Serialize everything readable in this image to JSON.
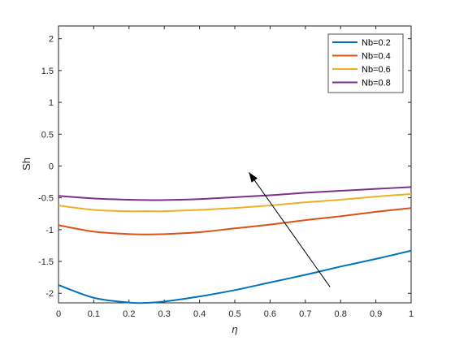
{
  "chart_data": {
    "type": "line",
    "xlabel": "η",
    "ylabel": "Sh",
    "xlim": [
      0,
      1
    ],
    "ylim": [
      -2.15,
      2.2
    ],
    "x_ticks": [
      0,
      0.1,
      0.2,
      0.3,
      0.4,
      0.5,
      0.6,
      0.7,
      0.8,
      0.9,
      1
    ],
    "x_tick_labels": [
      "0",
      "0.1",
      "0.2",
      "0.3",
      "0.4",
      "0.5",
      "0.6",
      "0.7",
      "0.8",
      "0.9",
      "1"
    ],
    "y_ticks": [
      -2,
      -1.5,
      -1,
      -0.5,
      0,
      0.5,
      1,
      1.5,
      2
    ],
    "y_tick_labels": [
      "-2",
      "-1.5",
      "-1",
      "-0.5",
      "0",
      "0.5",
      "1",
      "1.5",
      "2"
    ],
    "grid": false,
    "legend_position": "top-right",
    "x": [
      0,
      0.1,
      0.2,
      0.25,
      0.3,
      0.4,
      0.5,
      0.6,
      0.7,
      0.8,
      0.9,
      1
    ],
    "series": [
      {
        "name": "Nb=0.2",
        "color": "#0072BD",
        "values": [
          -1.87,
          -2.07,
          -2.145,
          -2.15,
          -2.13,
          -2.05,
          -1.95,
          -1.83,
          -1.71,
          -1.58,
          -1.46,
          -1.33
        ]
      },
      {
        "name": "Nb=0.4",
        "color": "#D95319",
        "values": [
          -0.93,
          -1.03,
          -1.07,
          -1.075,
          -1.07,
          -1.04,
          -0.98,
          -0.92,
          -0.85,
          -0.79,
          -0.72,
          -0.66
        ]
      },
      {
        "name": "Nb=0.6",
        "color": "#EDB120",
        "values": [
          -0.62,
          -0.69,
          -0.71,
          -0.71,
          -0.71,
          -0.69,
          -0.66,
          -0.62,
          -0.57,
          -0.53,
          -0.48,
          -0.44
        ]
      },
      {
        "name": "Nb=0.8",
        "color": "#7E2F8E",
        "values": [
          -0.47,
          -0.51,
          -0.53,
          -0.535,
          -0.535,
          -0.52,
          -0.49,
          -0.46,
          -0.42,
          -0.39,
          -0.36,
          -0.33
        ]
      }
    ],
    "annotations": [
      {
        "type": "arrow",
        "from": [
          0.77,
          -1.9
        ],
        "to": [
          0.54,
          -0.1
        ]
      }
    ]
  }
}
